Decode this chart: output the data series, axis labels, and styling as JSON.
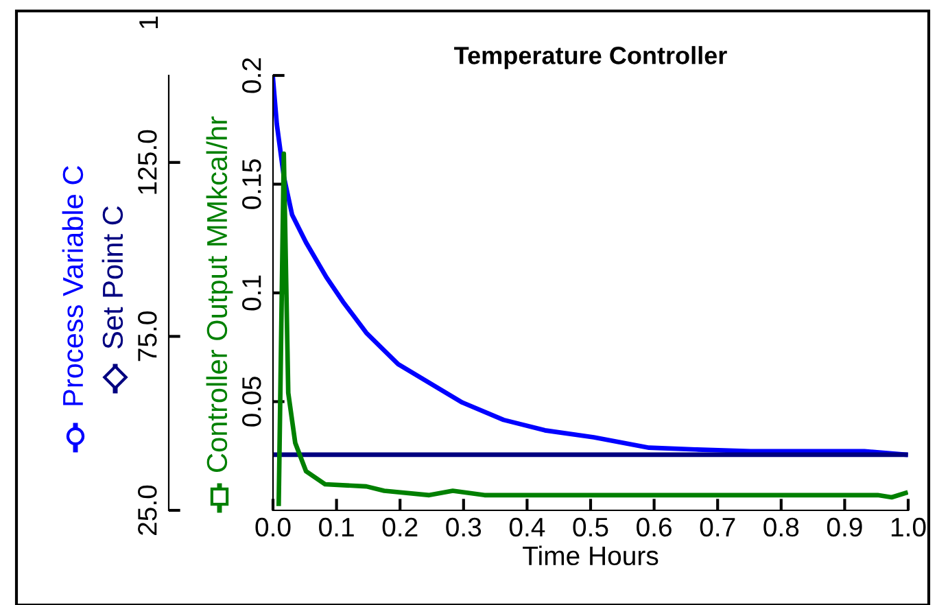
{
  "chart_data": {
    "type": "line",
    "title": "Temperature Controller",
    "xlabel": "Time Hours",
    "xlim": [
      0,
      1
    ],
    "xticks": [
      {
        "value": 0,
        "label": "0.0"
      },
      {
        "value": 0.1,
        "label": "0.1"
      },
      {
        "value": 0.2,
        "label": "0.2"
      },
      {
        "value": 0.3,
        "label": "0.3"
      },
      {
        "value": 0.4,
        "label": "0.4"
      },
      {
        "value": 0.5,
        "label": "0.5"
      },
      {
        "value": 0.6,
        "label": "0.6"
      },
      {
        "value": 0.7,
        "label": "0.7"
      },
      {
        "value": 0.8,
        "label": "0.8"
      },
      {
        "value": 0.9,
        "label": "0.9"
      },
      {
        "value": 1.0,
        "label": "1.0"
      }
    ],
    "ylim": [
      0,
      0.2
    ],
    "yticks": [
      0.05,
      0.1,
      0.15,
      0.2
    ],
    "y2lim": [
      25,
      150
    ],
    "y2ticks": [
      {
        "value": 25,
        "label": "25.0"
      },
      {
        "value": 75,
        "label": "75.0"
      },
      {
        "value": 125,
        "label": "125.0"
      }
    ],
    "legend": "left",
    "grid": false,
    "line_style": "solid",
    "annotations": [
      "1"
    ],
    "series": [
      {
        "name": "Process Variable C",
        "color": "#0000ff",
        "axis": "y2",
        "x": [
          0,
          0.006,
          0.017,
          0.03,
          0.052,
          0.084,
          0.11,
          0.147,
          0.197,
          0.261,
          0.298,
          0.363,
          0.428,
          0.505,
          0.592,
          0.665,
          0.752,
          0.931,
          0.996
        ],
        "values": [
          149,
          136,
          121,
          110,
          102,
          92,
          85,
          76,
          67,
          60,
          56,
          51,
          48,
          46,
          43,
          42.5,
          42,
          42,
          41
        ]
      },
      {
        "name": "Set Point C",
        "color": "#000080",
        "axis": "y2",
        "x": [
          0,
          0.996
        ],
        "values": [
          41,
          41
        ]
      },
      {
        "name": "Controller Output MMkcal/hr",
        "color": "#008000",
        "axis": "y",
        "x": [
          0.009,
          0.017,
          0.024,
          0.035,
          0.052,
          0.082,
          0.147,
          0.175,
          0.246,
          0.283,
          0.333,
          0.952,
          0.974,
          0.996
        ],
        "values": [
          0.003,
          0.164,
          0.054,
          0.031,
          0.018,
          0.012,
          0.011,
          0.009,
          0.007,
          0.009,
          0.007,
          0.007,
          0.006,
          0.008
        ]
      }
    ]
  }
}
